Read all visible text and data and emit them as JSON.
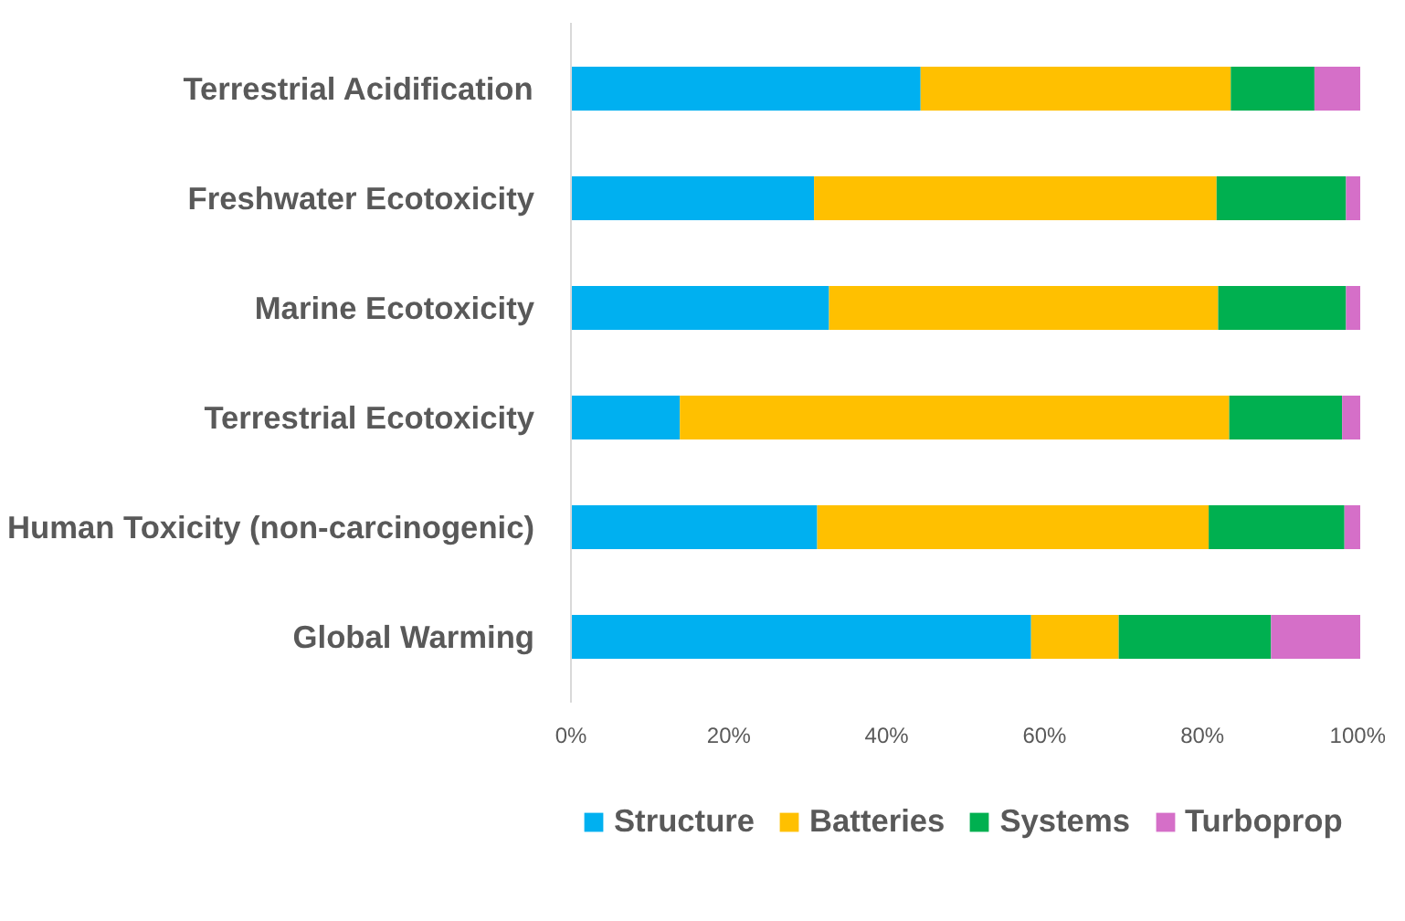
{
  "chart_data": {
    "type": "bar",
    "orientation": "horizontal",
    "stacked": true,
    "categories": [
      "Terrestrial Acidification",
      "Freshwater Ecotoxicity",
      "Marine Ecotoxicity",
      "Terrestrial Ecotoxicity",
      "Human Toxicity (non-carcinogenic)",
      "Global Warming"
    ],
    "series": [
      {
        "name": "Structure",
        "color": "#00b0f0",
        "values": [
          44.3,
          30.8,
          32.7,
          13.8,
          31.2,
          58.3
        ]
      },
      {
        "name": "Batteries",
        "color": "#ffc000",
        "values": [
          39.3,
          51.0,
          49.3,
          69.6,
          49.6,
          11.1
        ]
      },
      {
        "name": "Systems",
        "color": "#00b050",
        "values": [
          10.6,
          16.4,
          16.2,
          14.3,
          17.2,
          19.3
        ]
      },
      {
        "name": "Turboprop",
        "color": "#d56fc8",
        "values": [
          5.8,
          1.8,
          1.8,
          2.3,
          2.0,
          11.3
        ]
      }
    ],
    "xlim": [
      0,
      100
    ],
    "xticks": [
      {
        "value": 0,
        "label": "0%"
      },
      {
        "value": 20,
        "label": "20%"
      },
      {
        "value": 40,
        "label": "40%"
      },
      {
        "value": 60,
        "label": "60%"
      },
      {
        "value": 80,
        "label": "80%"
      },
      {
        "value": 100,
        "label": "100%"
      }
    ],
    "grid": false,
    "legend": "bottom"
  }
}
